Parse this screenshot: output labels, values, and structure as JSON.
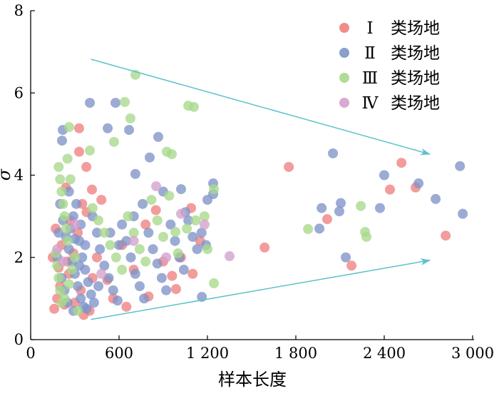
{
  "chart_data": {
    "type": "scatter",
    "title": "",
    "xlabel": "样本长度",
    "ylabel": "σ",
    "xlim": [
      0,
      3000
    ],
    "ylim": [
      0,
      8
    ],
    "xticks": [
      0,
      600,
      1200,
      1800,
      2400,
      3000
    ],
    "xtick_labels": [
      "0",
      "600",
      "1 200",
      "1 800",
      "2 400",
      "3 000"
    ],
    "yticks": [
      0,
      2,
      4,
      6,
      8
    ],
    "ytick_labels": [
      "0",
      "2",
      "4",
      "6",
      "8"
    ],
    "grid": false,
    "legend_position": "top-right",
    "arrows": [
      {
        "from": [
          409,
          6.82
        ],
        "to": [
          2710,
          4.51
        ],
        "color": "#5bc3cc"
      },
      {
        "from": [
          409,
          0.49
        ],
        "to": [
          2710,
          1.93
        ],
        "color": "#5bc3cc"
      }
    ],
    "series": [
      {
        "name": "Ⅰ",
        "suffix": "类场地",
        "color": "#f08080",
        "points": [
          [
            1752,
            4.2
          ],
          [
            2517,
            4.3
          ],
          [
            2439,
            3.65
          ],
          [
            2613,
            3.7
          ],
          [
            2817,
            2.53
          ],
          [
            1588,
            2.24
          ],
          [
            2013,
            2.93
          ],
          [
            2178,
            1.8
          ],
          [
            329,
            5.14
          ],
          [
            329,
            4.57
          ],
          [
            378,
            4.2
          ],
          [
            416,
            3.65
          ],
          [
            1089,
            3.2
          ],
          [
            987,
            1.23
          ],
          [
            160,
            0.75
          ],
          [
            180,
            1.0
          ],
          [
            200,
            1.3
          ],
          [
            230,
            0.85
          ],
          [
            260,
            1.6
          ],
          [
            290,
            2.1
          ],
          [
            320,
            2.6
          ],
          [
            350,
            3.3
          ],
          [
            380,
            3.1
          ],
          [
            170,
            2.7
          ],
          [
            210,
            2.3
          ],
          [
            250,
            1.9
          ],
          [
            300,
            0.9
          ],
          [
            340,
            1.2
          ],
          [
            400,
            0.7
          ],
          [
            420,
            1.5
          ],
          [
            190,
            1.75
          ],
          [
            270,
            2.9
          ],
          [
            360,
            0.6
          ],
          [
            450,
            2.0
          ],
          [
            520,
            1.45
          ],
          [
            560,
            1.0
          ],
          [
            620,
            2.3
          ],
          [
            700,
            1.7
          ],
          [
            780,
            2.8
          ],
          [
            850,
            3.15
          ],
          [
            900,
            1.9
          ],
          [
            960,
            1.55
          ],
          [
            1020,
            2.0
          ],
          [
            1100,
            1.6
          ],
          [
            1150,
            2.4
          ],
          [
            800,
            1.05
          ],
          [
            650,
            0.8
          ],
          [
            480,
            3.4
          ],
          [
            240,
            3.7
          ],
          [
            150,
            2.0
          ]
        ]
      },
      {
        "name": "Ⅱ",
        "suffix": "类场地",
        "color": "#7f93c8",
        "points": [
          [
            402,
            5.76
          ],
          [
            576,
            5.76
          ],
          [
            668,
            5.1
          ],
          [
            523,
            5.14
          ],
          [
            218,
            5.1
          ],
          [
            213,
            4.84
          ],
          [
            2052,
            4.53
          ],
          [
            2914,
            4.22
          ],
          [
            2933,
            3.06
          ],
          [
            2400,
            4.0
          ],
          [
            2633,
            3.8
          ],
          [
            2749,
            3.42
          ],
          [
            2371,
            3.2
          ],
          [
            2105,
            3.32
          ],
          [
            2095,
            3.12
          ],
          [
            1975,
            3.2
          ],
          [
            1960,
            2.7
          ],
          [
            2139,
            2.0
          ],
          [
            866,
            4.93
          ],
          [
            808,
            4.43
          ],
          [
            711,
            4.03
          ],
          [
            1021,
            3.66
          ],
          [
            1239,
            3.8
          ],
          [
            1239,
            3.54
          ],
          [
            1162,
            1.04
          ],
          [
            200,
            3.3
          ],
          [
            220,
            2.9
          ],
          [
            240,
            2.5
          ],
          [
            260,
            2.2
          ],
          [
            280,
            1.9
          ],
          [
            300,
            1.6
          ],
          [
            320,
            1.3
          ],
          [
            340,
            1.0
          ],
          [
            360,
            0.8
          ],
          [
            380,
            0.75
          ],
          [
            210,
            1.5
          ],
          [
            230,
            1.2
          ],
          [
            250,
            0.9
          ],
          [
            270,
            2.7
          ],
          [
            290,
            3.0
          ],
          [
            310,
            3.3
          ],
          [
            330,
            2.4
          ],
          [
            350,
            2.0
          ],
          [
            370,
            1.7
          ],
          [
            390,
            1.4
          ],
          [
            410,
            1.1
          ],
          [
            430,
            0.9
          ],
          [
            450,
            2.6
          ],
          [
            470,
            2.2
          ],
          [
            500,
            1.8
          ],
          [
            530,
            1.5
          ],
          [
            560,
            1.2
          ],
          [
            590,
            0.95
          ],
          [
            620,
            2.8
          ],
          [
            650,
            2.4
          ],
          [
            680,
            2.0
          ],
          [
            710,
            1.6
          ],
          [
            740,
            1.3
          ],
          [
            770,
            1.0
          ],
          [
            800,
            2.6
          ],
          [
            830,
            2.2
          ],
          [
            860,
            1.85
          ],
          [
            890,
            1.5
          ],
          [
            920,
            1.2
          ],
          [
            950,
            2.8
          ],
          [
            980,
            2.4
          ],
          [
            1010,
            2.0
          ],
          [
            1040,
            1.7
          ],
          [
            1070,
            2.9
          ],
          [
            1100,
            2.5
          ],
          [
            1130,
            2.2
          ],
          [
            1160,
            2.6
          ],
          [
            1190,
            2.3
          ],
          [
            1200,
            3.4
          ],
          [
            180,
            2.0
          ],
          [
            190,
            2.6
          ],
          [
            260,
            3.6
          ],
          [
            300,
            2.45
          ],
          [
            340,
            2.8
          ],
          [
            420,
            3.0
          ],
          [
            460,
            1.3
          ],
          [
            540,
            2.6
          ],
          [
            600,
            2.3
          ],
          [
            700,
            3.0
          ],
          [
            760,
            3.3
          ],
          [
            900,
            3.6
          ],
          [
            1050,
            3.1
          ],
          [
            290,
            0.7
          ],
          [
            330,
            1.8
          ],
          [
            370,
            2.3
          ]
        ]
      },
      {
        "name": "Ⅲ",
        "suffix": "类场地",
        "color": "#a8d88a",
        "points": [
          [
            711,
            6.44
          ],
          [
            639,
            5.78
          ],
          [
            677,
            5.38
          ],
          [
            566,
            4.81
          ],
          [
            402,
            4.6
          ],
          [
            261,
            5.17
          ],
          [
            1070,
            5.69
          ],
          [
            1108,
            5.66
          ],
          [
            924,
            4.57
          ],
          [
            958,
            4.51
          ],
          [
            2241,
            3.25
          ],
          [
            1883,
            2.69
          ],
          [
            2270,
            2.62
          ],
          [
            2279,
            2.5
          ],
          [
            1244,
            3.66
          ],
          [
            1244,
            1.37
          ],
          [
            983,
            2.62
          ],
          [
            190,
            4.2
          ],
          [
            200,
            3.9
          ],
          [
            210,
            3.6
          ],
          [
            220,
            3.3
          ],
          [
            230,
            3.0
          ],
          [
            240,
            2.7
          ],
          [
            250,
            2.4
          ],
          [
            170,
            2.1
          ],
          [
            180,
            1.8
          ],
          [
            190,
            1.5
          ],
          [
            200,
            1.2
          ],
          [
            210,
            0.9
          ],
          [
            260,
            1.35
          ],
          [
            280,
            1.7
          ],
          [
            300,
            2.0
          ],
          [
            320,
            0.7
          ],
          [
            420,
            3.2
          ],
          [
            460,
            2.9
          ],
          [
            500,
            2.6
          ],
          [
            540,
            2.3
          ],
          [
            580,
            2.0
          ],
          [
            620,
            1.7
          ],
          [
            660,
            3.0
          ],
          [
            700,
            2.6
          ],
          [
            740,
            2.2
          ],
          [
            780,
            1.9
          ],
          [
            820,
            3.4
          ],
          [
            860,
            2.9
          ],
          [
            900,
            2.5
          ],
          [
            940,
            3.5
          ],
          [
            1000,
            2.1
          ],
          [
            1060,
            2.7
          ],
          [
            1120,
            2.9
          ],
          [
            1180,
            3.0
          ],
          [
            1200,
            2.2
          ],
          [
            250,
            4.4
          ],
          [
            230,
            1.0
          ],
          [
            270,
            3.9
          ]
        ]
      },
      {
        "name": "Ⅳ",
        "suffix": "类场地",
        "color": "#d4a0cc",
        "points": [
          [
            1350,
            2.03
          ],
          [
            852,
            3.73
          ],
          [
            1021,
            3.06
          ],
          [
            180,
            2.2
          ],
          [
            220,
            1.9
          ],
          [
            300,
            2.8
          ],
          [
            480,
            1.6
          ],
          [
            700,
            2.4
          ],
          [
            920,
            2.0
          ],
          [
            1180,
            2.8
          ]
        ]
      }
    ]
  }
}
